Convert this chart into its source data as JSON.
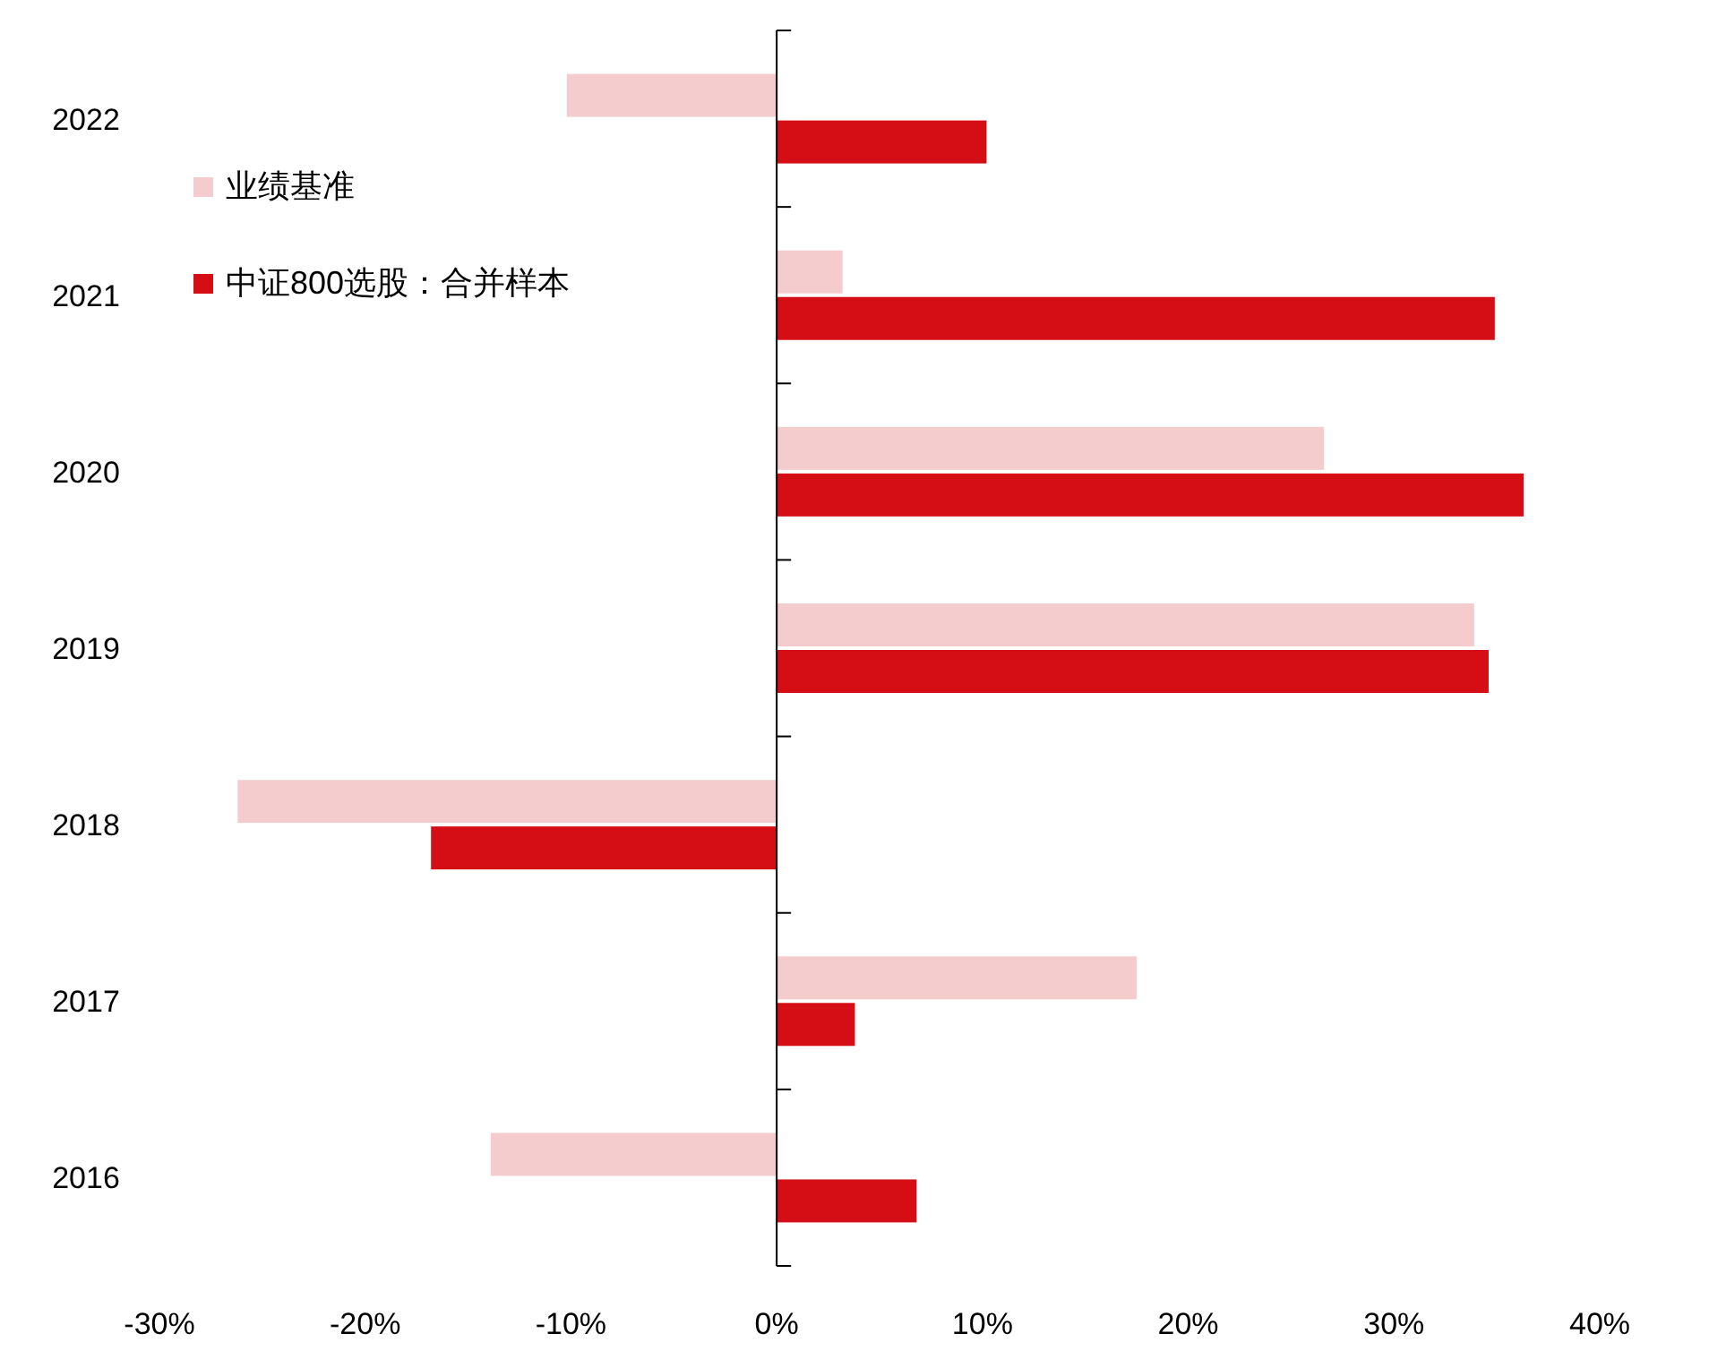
{
  "chart_data": {
    "type": "bar",
    "orientation": "horizontal",
    "categories": [
      "2022",
      "2021",
      "2020",
      "2019",
      "2018",
      "2017",
      "2016"
    ],
    "series": [
      {
        "name": "业绩基准",
        "color": "#f5cccd",
        "values": [
          -10.2,
          3.2,
          26.6,
          33.9,
          -26.2,
          17.5,
          -13.9
        ]
      },
      {
        "name": "中证800选股：合并样本",
        "color": "#d40e14",
        "values": [
          10.2,
          34.9,
          36.3,
          34.6,
          -16.8,
          3.8,
          6.8
        ]
      }
    ],
    "xlim": [
      -30,
      40
    ],
    "xticks": [
      {
        "value": -30,
        "label": "-30%"
      },
      {
        "value": -20,
        "label": "-20%"
      },
      {
        "value": -10,
        "label": "-10%"
      },
      {
        "value": 0,
        "label": "0%"
      },
      {
        "value": 10,
        "label": "10%"
      },
      {
        "value": 20,
        "label": "20%"
      },
      {
        "value": 30,
        "label": "30%"
      },
      {
        "value": 40,
        "label": "40%"
      }
    ],
    "legend": "top left"
  }
}
